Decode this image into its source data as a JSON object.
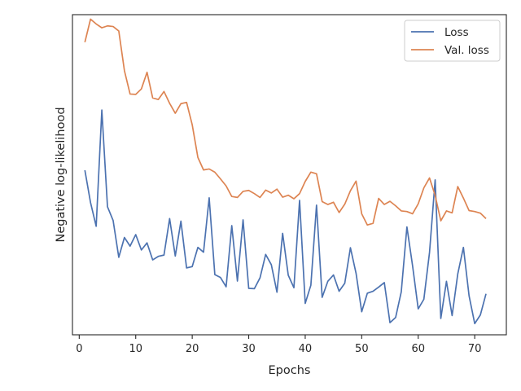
{
  "chart_data": {
    "type": "line",
    "title": "",
    "xlabel": "Epochs",
    "ylabel": "Negative log-likelihood",
    "xlim": [
      -1.2,
      75.6
    ],
    "ylim": [
      0.0,
      1.0
    ],
    "x_ticks": [
      0,
      10,
      20,
      30,
      40,
      50,
      60,
      70
    ],
    "y_tick_labels_shown": false,
    "grid": false,
    "legend_position": "top-right",
    "series": [
      {
        "name": "Loss",
        "color": "#4c72b0",
        "x": [
          1,
          2,
          3,
          4,
          5,
          6,
          7,
          8,
          9,
          10,
          11,
          12,
          13,
          14,
          15,
          16,
          17,
          18,
          19,
          20,
          21,
          22,
          23,
          24,
          25,
          26,
          27,
          28,
          29,
          30,
          31,
          32,
          33,
          34,
          35,
          36,
          37,
          38,
          39,
          40,
          41,
          42,
          43,
          44,
          45,
          46,
          47,
          48,
          49,
          50,
          51,
          52,
          53,
          54,
          55,
          56,
          57,
          58,
          59,
          60,
          61,
          62,
          63,
          64,
          65,
          66,
          67,
          68,
          69,
          70,
          71,
          72
        ],
        "values": [
          0.514,
          0.413,
          0.339,
          0.702,
          0.4,
          0.357,
          0.242,
          0.304,
          0.277,
          0.313,
          0.265,
          0.287,
          0.234,
          0.245,
          0.249,
          0.363,
          0.246,
          0.355,
          0.209,
          0.213,
          0.273,
          0.258,
          0.428,
          0.188,
          0.179,
          0.15,
          0.341,
          0.168,
          0.359,
          0.145,
          0.144,
          0.178,
          0.251,
          0.219,
          0.133,
          0.317,
          0.186,
          0.147,
          0.42,
          0.098,
          0.155,
          0.405,
          0.117,
          0.167,
          0.187,
          0.136,
          0.161,
          0.272,
          0.192,
          0.072,
          0.13,
          0.136,
          0.149,
          0.163,
          0.038,
          0.054,
          0.134,
          0.337,
          0.216,
          0.081,
          0.111,
          0.257,
          0.484,
          0.051,
          0.167,
          0.06,
          0.19,
          0.273,
          0.122,
          0.035,
          0.062,
          0.128
        ]
      },
      {
        "name": "Val. loss",
        "color": "#dd8452",
        "x": [
          1,
          2,
          3,
          4,
          5,
          6,
          7,
          8,
          9,
          10,
          11,
          12,
          13,
          14,
          15,
          16,
          17,
          18,
          19,
          20,
          21,
          22,
          23,
          24,
          25,
          26,
          27,
          28,
          29,
          30,
          31,
          32,
          33,
          34,
          35,
          36,
          37,
          38,
          39,
          40,
          41,
          42,
          43,
          44,
          45,
          46,
          47,
          48,
          49,
          50,
          51,
          52,
          53,
          54,
          55,
          56,
          57,
          58,
          59,
          60,
          61,
          62,
          63,
          64,
          65,
          66,
          67,
          68,
          69,
          70,
          71,
          72
        ],
        "values": [
          0.914,
          0.986,
          0.971,
          0.959,
          0.965,
          0.963,
          0.949,
          0.825,
          0.752,
          0.751,
          0.768,
          0.82,
          0.74,
          0.735,
          0.76,
          0.723,
          0.692,
          0.722,
          0.726,
          0.656,
          0.554,
          0.515,
          0.518,
          0.508,
          0.487,
          0.465,
          0.432,
          0.429,
          0.448,
          0.451,
          0.441,
          0.429,
          0.452,
          0.443,
          0.455,
          0.43,
          0.436,
          0.425,
          0.441,
          0.479,
          0.508,
          0.503,
          0.416,
          0.407,
          0.414,
          0.382,
          0.408,
          0.45,
          0.48,
          0.378,
          0.343,
          0.348,
          0.426,
          0.407,
          0.417,
          0.403,
          0.387,
          0.385,
          0.378,
          0.409,
          0.459,
          0.49,
          0.435,
          0.356,
          0.387,
          0.381,
          0.463,
          0.427,
          0.388,
          0.385,
          0.38,
          0.363
        ]
      }
    ]
  }
}
